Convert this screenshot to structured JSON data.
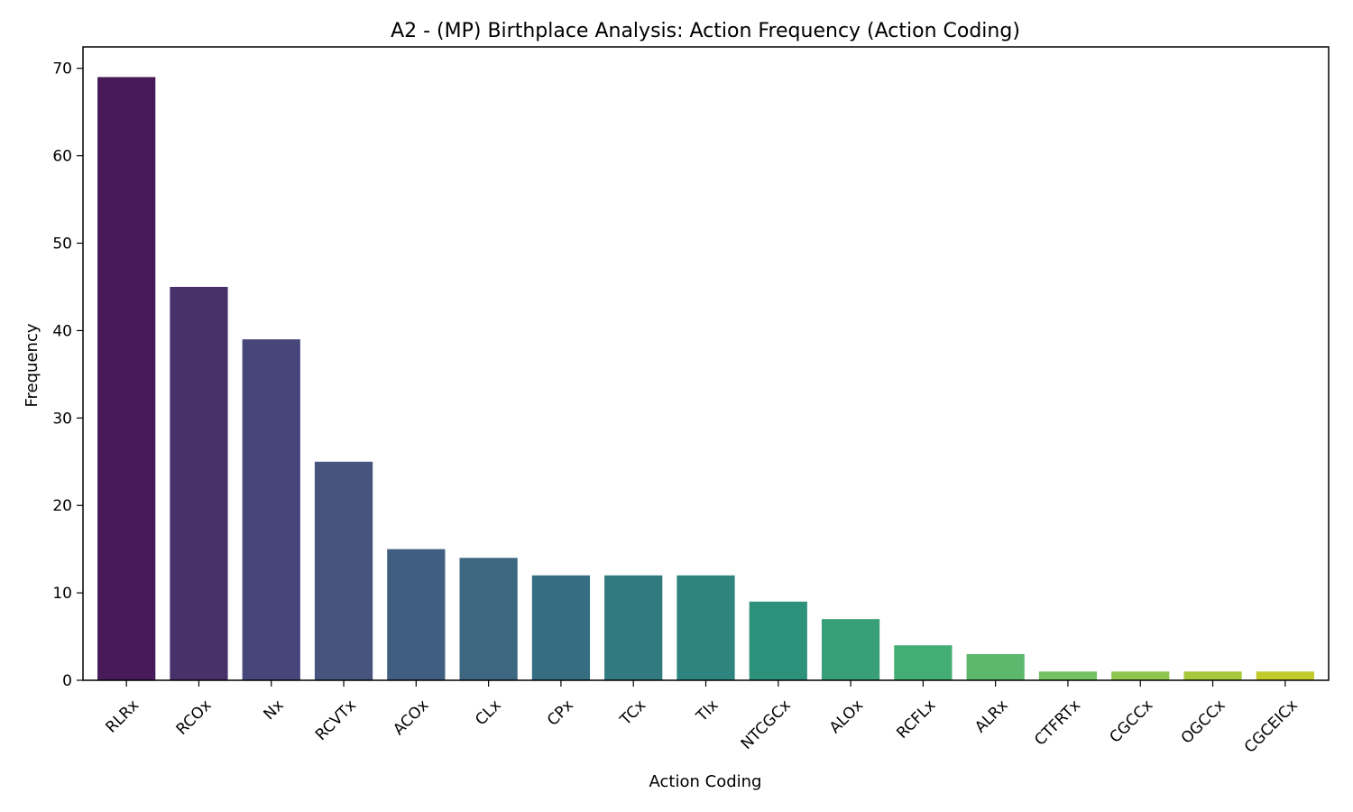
{
  "chart_data": {
    "type": "bar",
    "title": "A2 - (MP) Birthplace Analysis: Action Frequency (Action Coding)",
    "xlabel": "Action Coding",
    "ylabel": "Frequency",
    "categories": [
      "RLRx",
      "RCOx",
      "Nx",
      "RCVTx",
      "ACOx",
      "CLx",
      "CPx",
      "TCx",
      "TIx",
      "NTCGCx",
      "ALOx",
      "RCFLx",
      "ALRx",
      "CTFRTx",
      "CGCCx",
      "OGCCx",
      "CGCEICx"
    ],
    "values": [
      69,
      45,
      39,
      25,
      15,
      14,
      12,
      12,
      12,
      9,
      7,
      4,
      3,
      1,
      1,
      1,
      1
    ],
    "colors": [
      "#481a5a",
      "#48306b",
      "#47467b",
      "#47557e",
      "#405e80",
      "#3d6680",
      "#356e81",
      "#317a80",
      "#2e8580",
      "#2d917b",
      "#389f78",
      "#44ad73",
      "#5db86e",
      "#74c262",
      "#8ec54f",
      "#a7c83b",
      "#c3cb2d"
    ],
    "yticks": [
      0,
      10,
      20,
      30,
      40,
      50,
      60,
      70
    ],
    "ylim": [
      0,
      72.45
    ],
    "grid": false,
    "legend": "none"
  }
}
